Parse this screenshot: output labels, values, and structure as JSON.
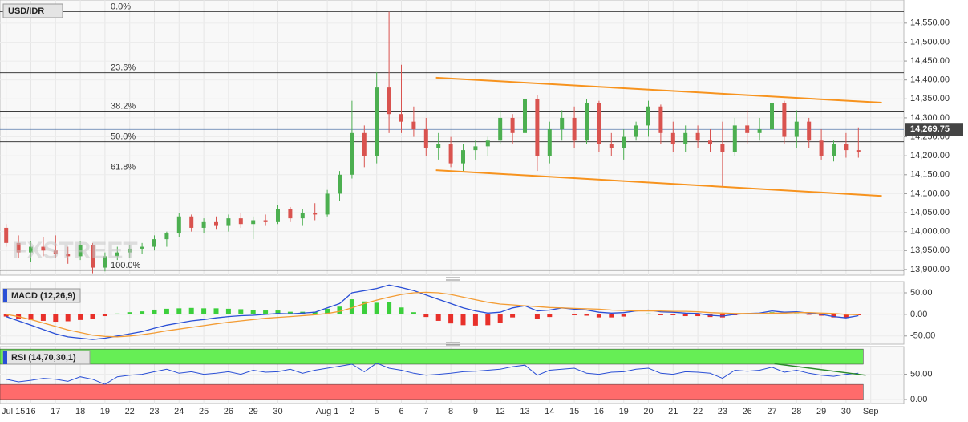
{
  "chart_data": [
    {
      "type": "candlestick",
      "title": "USD/IDR",
      "watermark": "FXSTREET",
      "categories": [
        "Jul 15",
        null,
        "16",
        null,
        "17",
        null,
        "18",
        null,
        "19",
        null,
        "22",
        null,
        "23",
        null,
        "24",
        null,
        "25",
        null,
        "26",
        null,
        "29",
        null,
        "30",
        null,
        null,
        null,
        "Aug 1",
        null,
        "2",
        null,
        "5",
        null,
        "6",
        null,
        "7",
        null,
        "8",
        null,
        "9",
        null,
        "12",
        null,
        "13",
        null,
        "14",
        null,
        "15",
        null,
        "16",
        null,
        "19",
        null,
        "20",
        null,
        "21",
        null,
        "22",
        null,
        "23",
        null,
        "26",
        null,
        "27",
        null,
        "28",
        null,
        "29",
        null,
        "30",
        null,
        "Sep",
        null
      ],
      "candles": [
        [
          14010,
          14020,
          13960,
          13970
        ],
        [
          13970,
          13990,
          13930,
          13945
        ],
        [
          13945,
          13975,
          13920,
          13960
        ],
        [
          13960,
          13985,
          13935,
          13950
        ],
        [
          13950,
          13990,
          13930,
          13940
        ],
        [
          13940,
          13960,
          13915,
          13935
        ],
        [
          13935,
          13975,
          13925,
          13965
        ],
        [
          13965,
          13970,
          13890,
          13905
        ],
        [
          13905,
          13945,
          13895,
          13935
        ],
        [
          13935,
          13960,
          13925,
          13945
        ],
        [
          13945,
          13965,
          13930,
          13955
        ],
        [
          13955,
          13970,
          13940,
          13960
        ],
        [
          13960,
          13990,
          13950,
          13980
        ],
        [
          13980,
          14000,
          13960,
          13995
        ],
        [
          13995,
          14050,
          13985,
          14040
        ],
        [
          14040,
          14045,
          14000,
          14010
        ],
        [
          14010,
          14035,
          13995,
          14025
        ],
        [
          14025,
          14040,
          14005,
          14015
        ],
        [
          14015,
          14045,
          14000,
          14035
        ],
        [
          14035,
          14050,
          14010,
          14020
        ],
        [
          14020,
          14040,
          13980,
          14030
        ],
        [
          14030,
          14045,
          14015,
          14025
        ],
        [
          14025,
          14070,
          14020,
          14060
        ],
        [
          14060,
          14065,
          14025,
          14035
        ],
        [
          14035,
          14060,
          14015,
          14050
        ],
        [
          14050,
          14075,
          14030,
          14045
        ],
        [
          14045,
          14110,
          14040,
          14100
        ],
        [
          14100,
          14160,
          14080,
          14150
        ],
        [
          14150,
          14345,
          14140,
          14260
        ],
        [
          14260,
          14280,
          14170,
          14200
        ],
        [
          14200,
          14420,
          14180,
          14380
        ],
        [
          14380,
          14580,
          14260,
          14310
        ],
        [
          14310,
          14440,
          14260,
          14290
        ],
        [
          14290,
          14330,
          14250,
          14270
        ],
        [
          14270,
          14300,
          14200,
          14220
        ],
        [
          14220,
          14260,
          14190,
          14230
        ],
        [
          14230,
          14250,
          14170,
          14180
        ],
        [
          14180,
          14230,
          14160,
          14215
        ],
        [
          14215,
          14240,
          14190,
          14225
        ],
        [
          14225,
          14250,
          14200,
          14240
        ],
        [
          14240,
          14320,
          14230,
          14300
        ],
        [
          14300,
          14310,
          14230,
          14260
        ],
        [
          14260,
          14360,
          14250,
          14350
        ],
        [
          14350,
          14360,
          14160,
          14200
        ],
        [
          14200,
          14290,
          14180,
          14270
        ],
        [
          14270,
          14320,
          14240,
          14300
        ],
        [
          14300,
          14330,
          14220,
          14240
        ],
        [
          14240,
          14350,
          14230,
          14340
        ],
        [
          14340,
          14345,
          14210,
          14230
        ],
        [
          14230,
          14260,
          14200,
          14220
        ],
        [
          14220,
          14270,
          14190,
          14250
        ],
        [
          14250,
          14290,
          14240,
          14280
        ],
        [
          14280,
          14345,
          14250,
          14330
        ],
        [
          14330,
          14335,
          14230,
          14260
        ],
        [
          14260,
          14290,
          14210,
          14230
        ],
        [
          14230,
          14280,
          14210,
          14260
        ],
        [
          14260,
          14280,
          14220,
          14240
        ],
        [
          14240,
          14270,
          14210,
          14230
        ],
        [
          14230,
          14290,
          14120,
          14210
        ],
        [
          14210,
          14300,
          14200,
          14280
        ],
        [
          14280,
          14320,
          14230,
          14260
        ],
        [
          14260,
          14300,
          14240,
          14270
        ],
        [
          14270,
          14350,
          14250,
          14340
        ],
        [
          14340,
          14345,
          14230,
          14250
        ],
        [
          14250,
          14320,
          14220,
          14290
        ],
        [
          14290,
          14300,
          14220,
          14240
        ],
        [
          14240,
          14270,
          14190,
          14200
        ],
        [
          14200,
          14240,
          14185,
          14230
        ],
        [
          14230,
          14260,
          14195,
          14215
        ],
        [
          14215,
          14275,
          14195,
          14210
        ],
        null,
        null
      ],
      "up_color": "#4caf50",
      "down_color": "#d9534f",
      "ylim": [
        13885,
        14611
      ],
      "yticks": [
        {
          "value": 14550,
          "label": "14,550.00"
        },
        {
          "value": 14500,
          "label": "14,500.00"
        },
        {
          "value": 14450,
          "label": "14,450.00"
        },
        {
          "value": 14400,
          "label": "14,400.00"
        },
        {
          "value": 14350,
          "label": "14,350.00"
        },
        {
          "value": 14300,
          "label": "14,300.00"
        },
        {
          "value": 14250,
          "label": "14,250.00"
        },
        {
          "value": 14200,
          "label": "14,200.00"
        },
        {
          "value": 14150,
          "label": "14,150.00"
        },
        {
          "value": 14100,
          "label": "14,100.00"
        },
        {
          "value": 14050,
          "label": "14,050.00"
        },
        {
          "value": 14000,
          "label": "14,000.00"
        },
        {
          "value": 13950,
          "label": "13,950.00"
        },
        {
          "value": 13900,
          "label": "13,900.00"
        }
      ],
      "fib": [
        {
          "value": 14580,
          "label": "0.0%"
        },
        {
          "value": 14419,
          "label": "23.6%"
        },
        {
          "value": 14318,
          "label": "38.2%"
        },
        {
          "value": 14237,
          "label": "50.0%"
        },
        {
          "value": 14157,
          "label": "61.8%"
        },
        {
          "value": 13898,
          "label": "100.0%"
        }
      ],
      "channel": {
        "color": "#f7931e",
        "lines": [
          {
            "from": [
              34.8,
              14406
            ],
            "to": [
              70.9,
              14340
            ]
          },
          {
            "from": [
              34.8,
              14162
            ],
            "to": [
              70.9,
              14094
            ]
          }
        ]
      },
      "last": {
        "value": 14269.75,
        "label": "14,269.75"
      }
    },
    {
      "type": "macd",
      "title": "MACD (12,26,9)",
      "series": [
        {
          "color": "#2a4fd6",
          "values": [
            -5,
            -15,
            -25,
            -35,
            -45,
            -52,
            -55,
            -58,
            -55,
            -50,
            -45,
            -40,
            -32,
            -25,
            -20,
            -15,
            -12,
            -8,
            -5,
            -3,
            -2,
            0,
            2,
            1,
            3,
            5,
            15,
            25,
            50,
            55,
            60,
            68,
            62,
            55,
            45,
            35,
            25,
            15,
            8,
            3,
            5,
            15,
            20,
            8,
            10,
            15,
            12,
            10,
            5,
            3,
            4,
            8,
            10,
            6,
            5,
            3,
            2,
            -2,
            -4,
            0,
            2,
            3,
            8,
            5,
            6,
            3,
            0,
            -5,
            -8,
            -3,
            null,
            null
          ]
        },
        {
          "color": "#f39c34",
          "values": [
            0,
            -5,
            -12,
            -20,
            -28,
            -36,
            -42,
            -48,
            -51,
            -52,
            -50,
            -47,
            -43,
            -38,
            -34,
            -30,
            -26,
            -22,
            -18,
            -15,
            -12,
            -9,
            -7,
            -5,
            -3,
            -1,
            2,
            7,
            15,
            25,
            33,
            40,
            46,
            50,
            51,
            50,
            46,
            40,
            34,
            28,
            24,
            22,
            20,
            18,
            16,
            15,
            14,
            13,
            12,
            10,
            9,
            8,
            8,
            8,
            7,
            7,
            6,
            4,
            3,
            2,
            2,
            2,
            3,
            3,
            4,
            4,
            3,
            2,
            0,
            -1,
            null,
            null
          ]
        }
      ],
      "histogram": {
        "up_color": "#3ccf3c",
        "down_color": "#e8302a",
        "values": [
          -5,
          -10,
          -13,
          -15,
          -17,
          -16,
          -13,
          -10,
          -4,
          2,
          5,
          7,
          11,
          13,
          14,
          15,
          14,
          14,
          13,
          12,
          10,
          9,
          9,
          6,
          6,
          6,
          13,
          18,
          35,
          30,
          27,
          28,
          16,
          5,
          -6,
          -15,
          -21,
          -25,
          -26,
          -25,
          -19,
          -7,
          0,
          -10,
          -6,
          0,
          -2,
          -3,
          -7,
          -7,
          -5,
          0,
          2,
          -2,
          -2,
          -4,
          -4,
          -6,
          -7,
          -2,
          0,
          1,
          5,
          2,
          2,
          -1,
          -3,
          -7,
          -8,
          -2,
          null,
          null
        ]
      },
      "ylim": [
        -69,
        76
      ],
      "yticks": [
        {
          "value": 50,
          "label": "50.00"
        },
        {
          "value": 0,
          "label": "0.00"
        },
        {
          "value": -50,
          "label": "-50.00"
        }
      ]
    },
    {
      "type": "line",
      "title": "RSI (14,70,30,1)",
      "series": [
        {
          "color": "#2a4fd6",
          "values": [
            40,
            35,
            38,
            42,
            40,
            36,
            45,
            40,
            30,
            45,
            48,
            50,
            55,
            60,
            52,
            55,
            50,
            52,
            55,
            50,
            58,
            54,
            55,
            60,
            52,
            58,
            62,
            66,
            70,
            55,
            72,
            62,
            58,
            52,
            48,
            50,
            52,
            55,
            56,
            58,
            60,
            65,
            68,
            48,
            58,
            60,
            62,
            52,
            50,
            54,
            55,
            60,
            62,
            52,
            50,
            55,
            54,
            52,
            42,
            58,
            56,
            58,
            64,
            54,
            58,
            52,
            48,
            46,
            50,
            52,
            null,
            null
          ]
        }
      ],
      "bands": [
        {
          "from": 70,
          "to": 100,
          "color": "#66ee55"
        },
        {
          "from": 0,
          "to": 30,
          "color": "#ff6b6b"
        }
      ],
      "trendline": {
        "color": "#2a8a2a",
        "from": [
          62.2,
          71
        ],
        "to": [
          69.6,
          48
        ]
      },
      "ylim": [
        -8,
        105
      ],
      "yticks": [
        {
          "value": 50,
          "label": "50.00"
        },
        {
          "value": 0,
          "label": "0.00"
        }
      ]
    }
  ]
}
